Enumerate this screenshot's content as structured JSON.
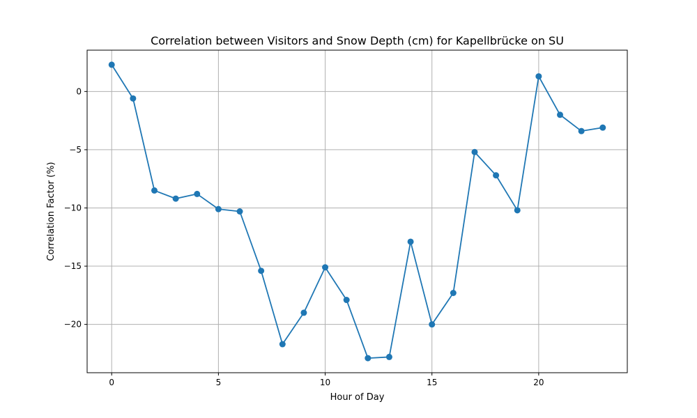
{
  "chart_data": {
    "type": "line",
    "title": "Correlation between Visitors and Snow Depth (cm) for Kapellbrücke on SU",
    "xlabel": "Hour of Day",
    "ylabel": "Correlation Factor (%)",
    "x": [
      0,
      1,
      2,
      3,
      4,
      5,
      6,
      7,
      8,
      9,
      10,
      11,
      12,
      13,
      14,
      15,
      16,
      17,
      18,
      19,
      20,
      21,
      22,
      23
    ],
    "series": [
      {
        "values": [
          2.3,
          -0.6,
          -8.5,
          -9.2,
          -8.8,
          -10.1,
          -10.3,
          -15.4,
          -21.7,
          -19.0,
          -15.1,
          -17.9,
          -22.9,
          -22.8,
          -12.9,
          -20.0,
          -17.3,
          -5.2,
          -7.2,
          -10.2,
          1.3,
          -2.0,
          -3.4,
          -3.1
        ],
        "color": "#1f77b4",
        "marker": "circle"
      }
    ],
    "xlim": [
      -1.15,
      24.15
    ],
    "ylim": [
      -24.15,
      3.55
    ],
    "xticks": [
      0,
      5,
      10,
      15,
      20
    ],
    "yticks": [
      0,
      -5,
      -10,
      -15,
      -20
    ],
    "ytick_labels": [
      "0",
      "−5",
      "−10",
      "−15",
      "−20"
    ],
    "grid": true,
    "colors": {
      "grid": "#b0b0b0",
      "axes": "#000000",
      "line": "#1f77b4"
    }
  }
}
